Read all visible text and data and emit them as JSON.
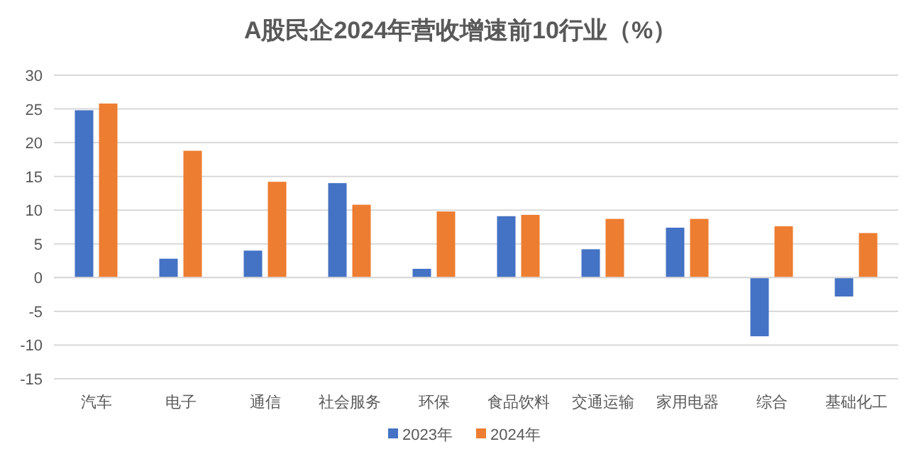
{
  "chart_data": {
    "type": "bar",
    "title": "A股民企2024年营收增速前10行业（%）",
    "categories": [
      "汽车",
      "电子",
      "通信",
      "社会服务",
      "环保",
      "食品饮料",
      "交通运输",
      "家用电器",
      "综合",
      "基础化工"
    ],
    "series": [
      {
        "name": "2023年",
        "color": "#4472c4",
        "values": [
          24.8,
          2.8,
          4.0,
          14.0,
          1.3,
          9.1,
          4.2,
          7.4,
          -8.7,
          -2.8
        ]
      },
      {
        "name": "2024年",
        "color": "#ed7d31",
        "values": [
          25.8,
          18.8,
          14.2,
          10.8,
          9.8,
          9.3,
          8.7,
          8.7,
          7.6,
          6.6
        ]
      }
    ],
    "ylim": [
      -15,
      30
    ],
    "yticks": [
      -15,
      -10,
      -5,
      0,
      5,
      10,
      15,
      20,
      25,
      30
    ],
    "grid": "y",
    "legend": "bottom"
  }
}
